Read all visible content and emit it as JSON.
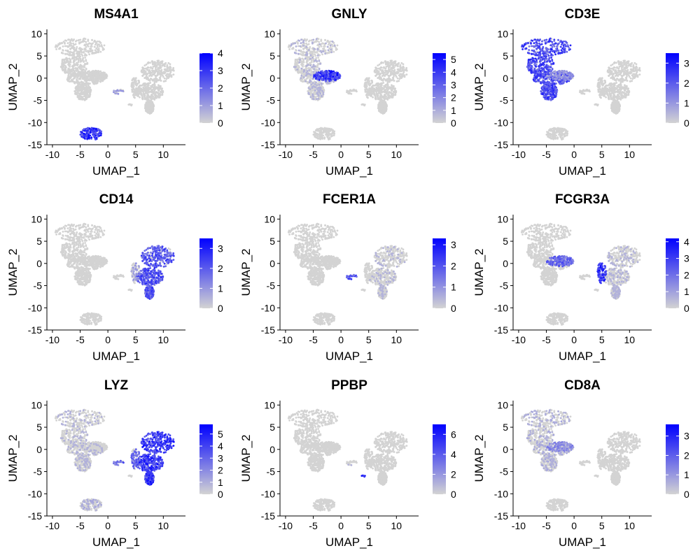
{
  "chart_data": {
    "type": "scatter",
    "layout": "3x3 grid of feature plots",
    "xlabel": "UMAP_1",
    "ylabel": "UMAP_2",
    "xlim": [
      -11,
      14
    ],
    "ylim": [
      -15,
      11
    ],
    "x_ticks": [
      -10,
      -5,
      0,
      5,
      10
    ],
    "y_ticks": [
      -15,
      -10,
      -5,
      0,
      5,
      10
    ],
    "color_low": "#d3d3d3",
    "color_high": "#0000ff",
    "grid": false,
    "legend_placement": "right of each panel (continuous color bar)",
    "clusters": {
      "t_cell": {
        "center": [
          -5.5,
          5.5
        ],
        "ellipses": [
          [
            -5,
            7,
            4.5,
            2
          ],
          [
            -6,
            3,
            2.5,
            2.5
          ],
          [
            -4,
            0,
            3.5,
            1.5
          ],
          [
            -4.5,
            -3,
            1.5,
            2
          ]
        ]
      },
      "nk": {
        "center": [
          -3,
          0.5
        ],
        "ellipses": [
          [
            -2.5,
            0.5,
            2.5,
            1.2
          ]
        ]
      },
      "b_cell": {
        "center": [
          -3,
          -12.5
        ],
        "ellipses": [
          [
            -3,
            -12.5,
            2,
            1.4
          ]
        ]
      },
      "monocyte": {
        "center": [
          9,
          -1
        ],
        "ellipses": [
          [
            9,
            1.5,
            3,
            2.5
          ],
          [
            7.5,
            -3,
            2.5,
            2
          ],
          [
            7.5,
            -6.5,
            0.8,
            1.5
          ]
        ]
      },
      "fcgr3a_mono": {
        "center": [
          5,
          -2
        ],
        "ellipses": [
          [
            5,
            -2,
            0.8,
            2.5
          ]
        ]
      },
      "dc": {
        "center": [
          2,
          -3
        ],
        "ellipses": [
          [
            2,
            -3,
            1,
            0.6
          ]
        ]
      },
      "platelet": {
        "center": [
          4,
          -6
        ],
        "ellipses": [
          [
            4,
            -6,
            0.4,
            0.4
          ]
        ]
      }
    },
    "panels": [
      {
        "title": "MS4A1",
        "legend_max": 4,
        "legend_ticks": [
          0,
          1,
          2,
          3,
          4
        ],
        "expressed_in": [
          {
            "cluster": "b_cell",
            "level": 0.85
          },
          {
            "cluster": "dc",
            "level": 0.3
          }
        ]
      },
      {
        "title": "GNLY",
        "legend_max": 5.5,
        "legend_ticks": [
          0,
          1,
          2,
          3,
          4,
          5
        ],
        "expressed_in": [
          {
            "cluster": "nk",
            "level": 0.85
          },
          {
            "cluster": "t_cell",
            "level": 0.15
          }
        ]
      },
      {
        "title": "CD3E",
        "legend_max": 3.5,
        "legend_ticks": [
          0,
          1,
          2,
          3
        ],
        "expressed_in": [
          {
            "cluster": "t_cell",
            "level": 0.75
          },
          {
            "cluster": "nk",
            "level": 0.35
          }
        ]
      },
      {
        "title": "CD14",
        "legend_max": 3.5,
        "legend_ticks": [
          0,
          1,
          2,
          3
        ],
        "expressed_in": [
          {
            "cluster": "monocyte",
            "level": 0.7
          },
          {
            "cluster": "fcgr3a_mono",
            "level": 0.3
          }
        ]
      },
      {
        "title": "FCER1A",
        "legend_max": 3.3,
        "legend_ticks": [
          0,
          1,
          2,
          3
        ],
        "expressed_in": [
          {
            "cluster": "dc",
            "level": 0.7
          },
          {
            "cluster": "monocyte",
            "level": 0.1
          }
        ]
      },
      {
        "title": "FCGR3A",
        "legend_max": 4.2,
        "legend_ticks": [
          0,
          1,
          2,
          3,
          4
        ],
        "expressed_in": [
          {
            "cluster": "fcgr3a_mono",
            "level": 0.85
          },
          {
            "cluster": "nk",
            "level": 0.6
          },
          {
            "cluster": "monocyte",
            "level": 0.15
          }
        ]
      },
      {
        "title": "LYZ",
        "legend_max": 5.8,
        "legend_ticks": [
          0,
          1,
          2,
          3,
          4,
          5
        ],
        "expressed_in": [
          {
            "cluster": "monocyte",
            "level": 0.85
          },
          {
            "cluster": "fcgr3a_mono",
            "level": 0.6
          },
          {
            "cluster": "dc",
            "level": 0.6
          },
          {
            "cluster": "t_cell",
            "level": 0.15
          },
          {
            "cluster": "b_cell",
            "level": 0.2
          }
        ]
      },
      {
        "title": "PPBP",
        "legend_max": 7,
        "legend_ticks": [
          0,
          2,
          4,
          6
        ],
        "expressed_in": [
          {
            "cluster": "platelet",
            "level": 0.9
          },
          {
            "cluster": "dc",
            "level": 0.1
          }
        ]
      },
      {
        "title": "CD8A",
        "legend_max": 3.6,
        "legend_ticks": [
          0,
          1,
          2,
          3
        ],
        "expressed_in": [
          {
            "cluster": "t_cell",
            "level": 0.2
          },
          {
            "cluster": "nk",
            "level": 0.4
          }
        ]
      }
    ]
  }
}
